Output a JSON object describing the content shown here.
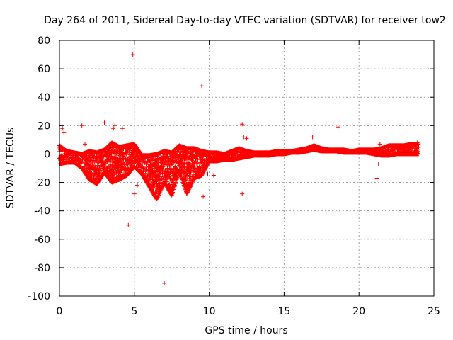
{
  "chart_data": {
    "type": "scatter",
    "title": "Day 264 of 2011, Sidereal Day-to-day VTEC variation (SDTVAR) for receiver tow2",
    "xlabel": "GPS time / hours",
    "ylabel": "SDTVAR / TECUs",
    "xlim": [
      0,
      25
    ],
    "ylim": [
      -100,
      80
    ],
    "xticks": [
      0,
      5,
      10,
      15,
      20,
      25
    ],
    "yticks": [
      -100,
      -80,
      -60,
      -40,
      -20,
      0,
      20,
      40,
      60,
      80
    ],
    "grid": true,
    "marker": "+",
    "color": "#ff0000",
    "series": [
      {
        "name": "SDTVAR",
        "envelope_x": [
          0,
          0.5,
          1,
          1.5,
          2,
          2.5,
          3,
          3.5,
          4,
          4.5,
          5,
          5.5,
          6,
          6.5,
          7,
          7.5,
          8,
          8.5,
          9,
          9.5,
          10,
          10.5,
          11,
          11.5,
          12,
          12.5,
          13,
          13.5,
          14,
          14.5,
          15,
          15.5,
          16,
          16.5,
          17,
          17.5,
          18,
          18.5,
          19,
          19.5,
          20,
          20.5,
          21,
          21.5,
          22,
          22.5,
          23,
          23.5,
          24
        ],
        "envelope_low": [
          -7,
          -6,
          -6,
          -10,
          -18,
          -21,
          -13,
          -20,
          -18,
          -15,
          -9,
          -14,
          -23,
          -32,
          -20,
          -29,
          -12,
          -28,
          -17,
          -15,
          -5,
          -5,
          -4,
          -4,
          -3,
          -2,
          -1,
          -1,
          -1,
          0,
          0,
          1,
          1,
          2,
          3,
          2,
          2,
          2,
          1,
          1,
          1,
          1,
          0,
          -1,
          -1,
          0,
          0,
          0,
          0
        ],
        "envelope_high": [
          6,
          2,
          1,
          0,
          2,
          1,
          3,
          8,
          5,
          6,
          7,
          -1,
          -1,
          0,
          2,
          1,
          6,
          4,
          4,
          2,
          1,
          1,
          0,
          2,
          4,
          2,
          1,
          1,
          1,
          2,
          2,
          2,
          3,
          4,
          6,
          4,
          3,
          3,
          3,
          2,
          3,
          3,
          3,
          4,
          6,
          6,
          6,
          7,
          7
        ],
        "outliers": [
          [
            0.2,
            18
          ],
          [
            0.3,
            15
          ],
          [
            1.5,
            20
          ],
          [
            1.7,
            7
          ],
          [
            3.0,
            22
          ],
          [
            3.6,
            18
          ],
          [
            3.7,
            20
          ],
          [
            4.2,
            18
          ],
          [
            4.6,
            -50
          ],
          [
            4.9,
            70
          ],
          [
            5.0,
            -28
          ],
          [
            5.2,
            -22
          ],
          [
            7.0,
            -91
          ],
          [
            9.5,
            48
          ],
          [
            9.6,
            -30
          ],
          [
            9.9,
            -14
          ],
          [
            10.3,
            -15
          ],
          [
            12.2,
            21
          ],
          [
            12.3,
            12
          ],
          [
            12.5,
            11
          ],
          [
            12.2,
            -28
          ],
          [
            16.9,
            12
          ],
          [
            18.6,
            19
          ],
          [
            21.2,
            -17
          ],
          [
            21.4,
            7
          ],
          [
            21.3,
            -7
          ],
          [
            23.9,
            8
          ]
        ]
      }
    ]
  }
}
